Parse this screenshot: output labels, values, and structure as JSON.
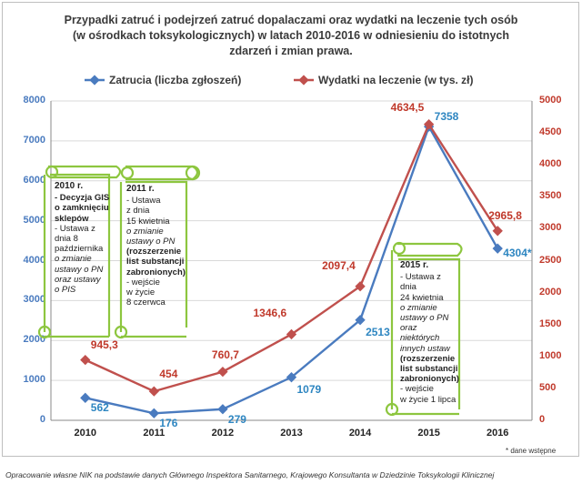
{
  "title_lines": [
    "Przypadki zatruć i podejrzeń zatruć dopalaczami oraz wydatki na leczenie tych osób",
    "(w ośrodkach toksykologicznych) w latach 2010-2016 w odniesieniu do istotnych",
    "zdarzeń i zmian prawa."
  ],
  "legend": {
    "blue": "Zatrucia (liczba zgłoszeń)",
    "red": "Wydatki na leczenie (w tys. zł)"
  },
  "colors": {
    "blue": "#4a7bbf",
    "red": "#c0504d",
    "note_border": "#8dc63f",
    "grid": "#d9d9d9"
  },
  "chart_data": {
    "type": "line",
    "x": [
      "2010",
      "2011",
      "2012",
      "2013",
      "2014",
      "2015",
      "2016"
    ],
    "series": [
      {
        "name": "Zatrucia (liczba zgłoszeń)",
        "axis": "left",
        "values": [
          562,
          176,
          279,
          1079,
          2513,
          7358,
          4304
        ],
        "labels": [
          "562",
          "176",
          "279",
          "1079",
          "2513",
          "7358",
          "4304*"
        ]
      },
      {
        "name": "Wydatki na leczenie (w tys. zł)",
        "axis": "right",
        "values": [
          945.3,
          454,
          760.7,
          1346.6,
          2097.4,
          4634.5,
          2965.8
        ],
        "labels": [
          "945,3",
          "454",
          "760,7",
          "1346,6",
          "2097,4",
          "4634,5",
          "2965,8"
        ]
      }
    ],
    "y_left": {
      "ylim": [
        0,
        8000
      ],
      "ticks": [
        "0",
        "1000",
        "2000",
        "3000",
        "4000",
        "5000",
        "6000",
        "7000",
        "8000"
      ]
    },
    "y_right": {
      "ylim": [
        0,
        5000
      ],
      "ticks": [
        "0",
        "500",
        "1000",
        "1500",
        "2000",
        "2500",
        "3000",
        "3500",
        "4000",
        "4500",
        "5000"
      ]
    },
    "grid": true,
    "legend_position": "top"
  },
  "notes": {
    "n2010": {
      "heading": "2010 r.",
      "lines": [
        [
          "b",
          "- Decyzja GIS"
        ],
        [
          "b",
          "o zamknięciu"
        ],
        [
          "b",
          "sklepów"
        ],
        [
          "n",
          "- Ustawa z"
        ],
        [
          "n",
          "dnia 8"
        ],
        [
          "n",
          "października"
        ],
        [
          "i",
          "o zmianie"
        ],
        [
          "i",
          "ustawy o PN"
        ],
        [
          "i",
          "oraz ustawy"
        ],
        [
          "i",
          "o PIS"
        ]
      ]
    },
    "n2011": {
      "heading": "2011 r.",
      "lines": [
        [
          "n",
          "- Ustawa"
        ],
        [
          "n",
          "z dnia"
        ],
        [
          "n",
          "15 kwietnia"
        ],
        [
          "i",
          "o zmianie"
        ],
        [
          "i",
          "ustawy o PN"
        ],
        [
          "b",
          "(rozszerzenie"
        ],
        [
          "b",
          "list substancji"
        ],
        [
          "b",
          "zabronionych)"
        ],
        [
          "n",
          "- wejście"
        ],
        [
          "n",
          "w życie"
        ],
        [
          "n",
          "8 czerwca"
        ]
      ]
    },
    "n2015": {
      "heading": "2015 r.",
      "lines": [
        [
          "n",
          "- Ustawa z dnia"
        ],
        [
          "n",
          "24 kwietnia"
        ],
        [
          "i",
          "o zmianie"
        ],
        [
          "i",
          "ustawy o PN"
        ],
        [
          "i",
          "oraz niektórych"
        ],
        [
          "i",
          "innych ustaw"
        ],
        [
          "b",
          "(rozszerzenie"
        ],
        [
          "b",
          "list substancji"
        ],
        [
          "b",
          "zabronionych)"
        ],
        [
          "n",
          "- wejście"
        ],
        [
          "n",
          "w życie 1 lipca"
        ]
      ]
    }
  },
  "footnote": "* dane wstępne",
  "source": "Opracowanie własne NIK na podstawie danych Głównego Inspektora Sanitarnego, Krajowego Konsultanta w Dziedzinie Toksykologii Klinicznej"
}
